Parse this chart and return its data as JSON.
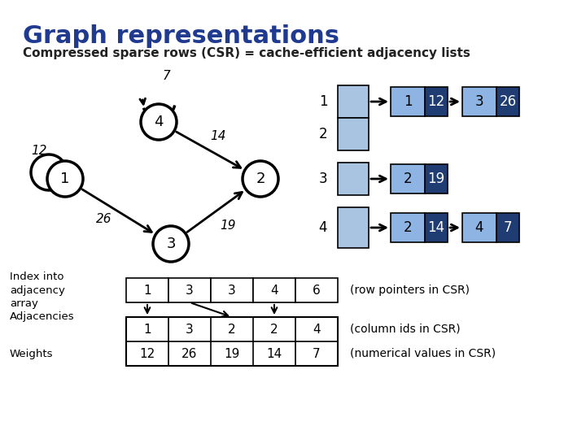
{
  "title": "Graph representations",
  "subtitle": "Compressed sparse rows (CSR) = cache-efficient adjacency lists",
  "title_color": "#1F3A8F",
  "bg_color": "#ffffff",
  "index_array": [
    1,
    3,
    3,
    4,
    6
  ],
  "adj_array": [
    1,
    3,
    2,
    2,
    4
  ],
  "weight_array": [
    12,
    26,
    19,
    14,
    7
  ],
  "light_blue": "#A8C4E0",
  "mid_blue": "#8EB4E3",
  "dark_blue": "#1F3D72"
}
